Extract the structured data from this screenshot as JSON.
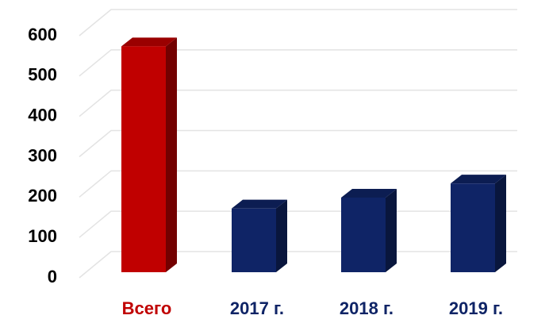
{
  "chart_data": {
    "type": "bar",
    "categories": [
      "Всего",
      "2017 г.",
      "2018 г.",
      "2019 г."
    ],
    "values": [
      560,
      158,
      185,
      220
    ],
    "colors": [
      "#c00000",
      "#0f2466",
      "#0f2466",
      "#0f2466"
    ],
    "ylim": [
      0,
      600
    ],
    "yticks": [
      0,
      100,
      200,
      300,
      400,
      500,
      600
    ],
    "grid": true
  }
}
